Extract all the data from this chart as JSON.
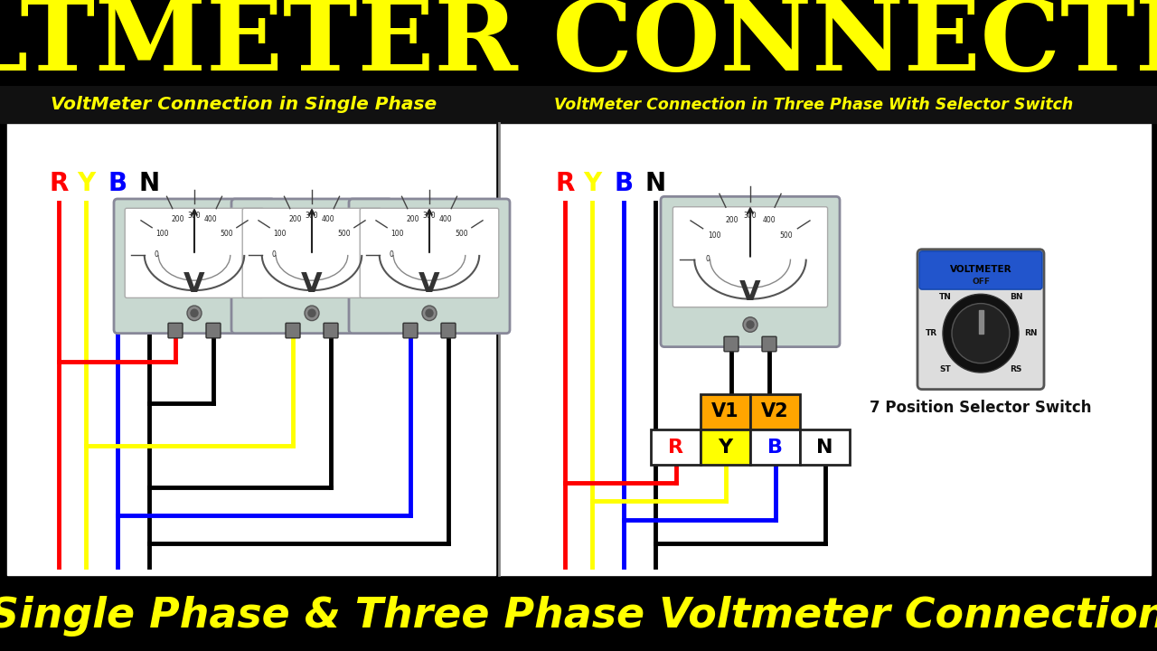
{
  "title": "VOLTMETER CONNECTION",
  "subtitle_left": "VoltMeter Connection in Single Phase",
  "subtitle_right": "VoltMeter Connection in Three Phase With Selector Switch",
  "bottom_text": "Single Phase & Three Phase Voltmeter Connection",
  "title_color": "#FFFF00",
  "title_bg": "#000000",
  "subtitle_color": "#FFFF00",
  "subtitle_bg": "#111111",
  "bottom_color": "#FFFF00",
  "bottom_bg": "#000000",
  "phase_labels": [
    "R",
    "Y",
    "B",
    "N"
  ],
  "phase_label_colors": [
    "#FF0000",
    "#FFFF00",
    "#0000FF",
    "#000000"
  ],
  "wire_R": "#FF0000",
  "wire_Y": "#FFFF00",
  "wire_B": "#0000FF",
  "wire_N": "#000000",
  "selector_label": "7 Position Selector Switch"
}
